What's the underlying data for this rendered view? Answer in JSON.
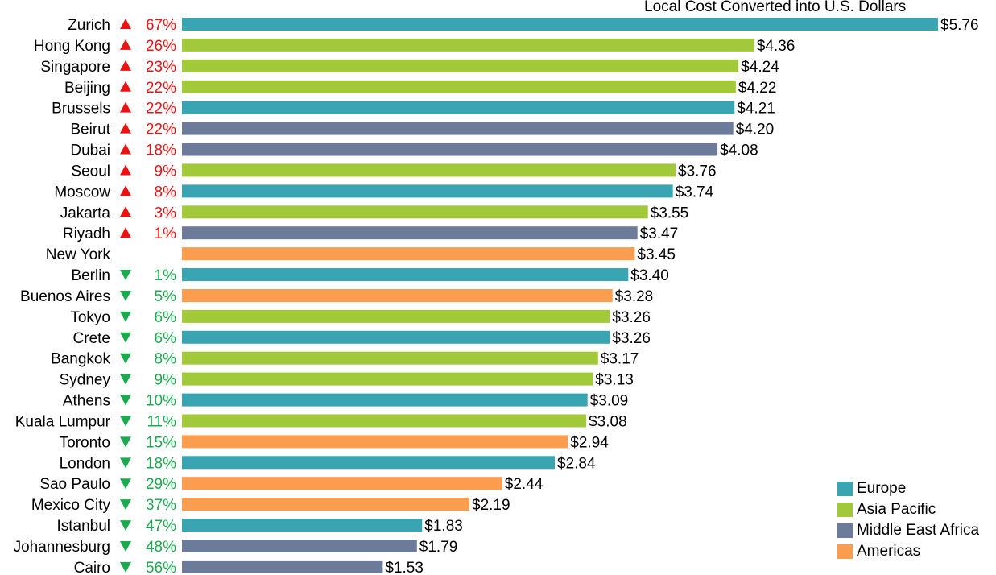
{
  "chart_data": {
    "type": "bar",
    "orientation": "horizontal",
    "title": "Local Cost Converted into U.S. Dollars",
    "xlim": [
      0,
      5.76
    ],
    "value_prefix": "$",
    "categories": [
      "Zurich",
      "Hong Kong",
      "Singapore",
      "Beijing",
      "Brussels",
      "Beirut",
      "Dubai",
      "Seoul",
      "Moscow",
      "Jakarta",
      "Riyadh",
      "New York",
      "Berlin",
      "Buenos Aires",
      "Tokyo",
      "Crete",
      "Bangkok",
      "Sydney",
      "Athens",
      "Kuala Lumpur",
      "Toronto",
      "London",
      "Sao Paulo",
      "Mexico City",
      "Istanbul",
      "Johannesburg",
      "Cairo"
    ],
    "values": [
      5.76,
      4.36,
      4.24,
      4.22,
      4.21,
      4.2,
      4.08,
      3.76,
      3.74,
      3.55,
      3.47,
      3.45,
      3.4,
      3.28,
      3.26,
      3.26,
      3.17,
      3.13,
      3.09,
      3.08,
      2.94,
      2.84,
      2.44,
      2.19,
      1.83,
      1.79,
      1.53
    ],
    "value_labels": [
      "$5.76",
      "$4.36",
      "$4.24",
      "$4.22",
      "$4.21",
      "$4.20",
      "$4.08",
      "$3.76",
      "$3.74",
      "$3.55",
      "$3.47",
      "$3.45",
      "$3.40",
      "$3.28",
      "$3.26",
      "$3.26",
      "$3.17",
      "$3.13",
      "$3.09",
      "$3.08",
      "$2.94",
      "$2.84",
      "$2.44",
      "$2.19",
      "$1.83",
      "$1.79",
      "$1.53"
    ],
    "regions": [
      "Europe",
      "Asia Pacific",
      "Asia Pacific",
      "Asia Pacific",
      "Europe",
      "Middle East Africa",
      "Middle East Africa",
      "Asia Pacific",
      "Europe",
      "Asia Pacific",
      "Middle East Africa",
      "Americas",
      "Europe",
      "Americas",
      "Asia Pacific",
      "Europe",
      "Asia Pacific",
      "Asia Pacific",
      "Europe",
      "Asia Pacific",
      "Americas",
      "Europe",
      "Americas",
      "Americas",
      "Europe",
      "Middle East Africa",
      "Middle East Africa"
    ],
    "change_direction": [
      "up",
      "up",
      "up",
      "up",
      "up",
      "up",
      "up",
      "up",
      "up",
      "up",
      "up",
      "",
      "down",
      "down",
      "down",
      "down",
      "down",
      "down",
      "down",
      "down",
      "down",
      "down",
      "down",
      "down",
      "down",
      "down",
      "down"
    ],
    "change_pct": [
      "67%",
      "26%",
      "23%",
      "22%",
      "22%",
      "22%",
      "18%",
      "9%",
      "8%",
      "3%",
      "1%",
      "",
      "1%",
      "5%",
      "6%",
      "6%",
      "8%",
      "9%",
      "10%",
      "11%",
      "15%",
      "18%",
      "29%",
      "37%",
      "47%",
      "48%",
      "56%"
    ],
    "legend": [
      {
        "name": "Europe",
        "color": "#3aa5b2"
      },
      {
        "name": "Asia Pacific",
        "color": "#a2c93a"
      },
      {
        "name": "Middle East Africa",
        "color": "#6d7b9b"
      },
      {
        "name": "Americas",
        "color": "#fb9d4f"
      }
    ],
    "legend_position": "bottom-right",
    "up_color": "#ee1111",
    "down_color": "#1aab4f",
    "grid": false
  }
}
